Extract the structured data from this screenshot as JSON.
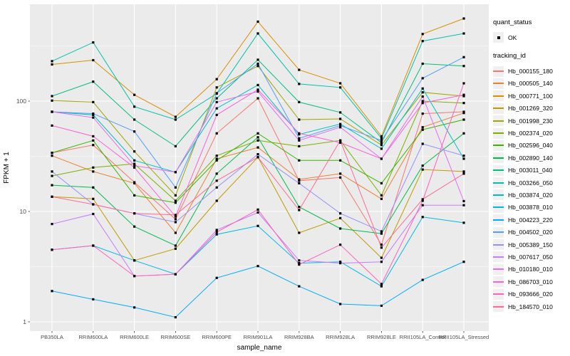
{
  "legend": {
    "quant_title": "quant_status",
    "quant_item": "OK",
    "series_title": "tracking_id"
  },
  "chart_data": {
    "type": "line",
    "title": "",
    "xlabel": "sample_name",
    "ylabel": "FPKM + 1",
    "y_scale": "log10",
    "ylim": [
      1,
      700
    ],
    "y_ticks": [
      1,
      10,
      100
    ],
    "y_minor_ticks": [
      3.162,
      31.623,
      316.228
    ],
    "grid": "on",
    "legend_position": "right",
    "point_marker": "square",
    "categories": [
      "PB350LA",
      "RRIM600LA",
      "RRIM600LE",
      "RRIM600SE",
      "RRIM600PE",
      "RRIM901LA",
      "RRIM928BA",
      "RRIM928LA",
      "RRIM928LE",
      "RRII105LA_Control",
      "RRII105LA_Stressed"
    ],
    "series": [
      {
        "name": "Hb_000155_180",
        "color": "#F8766D",
        "values": [
          34,
          40,
          18.4,
          8.5,
          51,
          106,
          19,
          20.3,
          5,
          77,
          80
        ]
      },
      {
        "name": "Hb_000505_140",
        "color": "#EA8331",
        "values": [
          32,
          23,
          18,
          6.4,
          30,
          38,
          19.5,
          22,
          13,
          58,
          78
        ]
      },
      {
        "name": "Hb_000771_100",
        "color": "#D89000",
        "values": [
          215,
          235,
          114,
          72,
          158,
          525,
          192,
          145,
          48,
          405,
          560
        ]
      },
      {
        "name": "Hb_001269_320",
        "color": "#C09B00",
        "values": [
          13.6,
          13,
          3.6,
          4.6,
          12.5,
          31,
          6.4,
          8.7,
          3.8,
          24,
          23
        ]
      },
      {
        "name": "Hb_001998_230",
        "color": "#A3A500",
        "values": [
          101,
          98,
          35,
          14,
          133,
          208,
          68,
          69,
          40,
          120,
          111
        ]
      },
      {
        "name": "Hb_002374_020",
        "color": "#7CAE00",
        "values": [
          21,
          25,
          27,
          12.5,
          32,
          44,
          39,
          44,
          14,
          100,
          96
        ]
      },
      {
        "name": "Hb_002596_040",
        "color": "#39B600",
        "values": [
          34,
          44,
          14,
          12,
          29,
          51,
          29,
          29,
          18,
          55,
          68
        ]
      },
      {
        "name": "Hb_002890_140",
        "color": "#00BB4E",
        "values": [
          17.3,
          16.5,
          7.3,
          4.9,
          22,
          47,
          11,
          7,
          6.3,
          26,
          51
        ]
      },
      {
        "name": "Hb_003011_040",
        "color": "#00BF7D",
        "values": [
          111,
          150,
          68,
          39,
          106,
          237,
          98,
          79,
          42,
          218,
          208
        ]
      },
      {
        "name": "Hb_003266_050",
        "color": "#00C1A7",
        "values": [
          230,
          340,
          89,
          68,
          117,
          410,
          143,
          133,
          46,
          350,
          410
        ]
      },
      {
        "name": "Hb_003874_020",
        "color": "#00BFC4",
        "values": [
          80,
          75,
          29,
          22.7,
          86,
          140,
          50,
          62,
          37,
          130,
          30
        ]
      },
      {
        "name": "Hb_003878_010",
        "color": "#00B8E5",
        "values": [
          4.5,
          4.9,
          3.6,
          2.7,
          6.2,
          7.4,
          3.4,
          3.5,
          2.1,
          8.9,
          7.9
        ]
      },
      {
        "name": "Hb_004223_220",
        "color": "#00ACFC",
        "values": [
          1.9,
          1.6,
          1.35,
          1.1,
          2.5,
          3.2,
          2.1,
          1.45,
          1.4,
          2.4,
          3.5
        ]
      },
      {
        "name": "Hb_004502_020",
        "color": "#529EFF",
        "values": [
          80,
          77,
          53,
          16.5,
          118,
          218,
          46,
          60,
          44,
          161,
          250
        ]
      },
      {
        "name": "Hb_005389_150",
        "color": "#9590FF",
        "values": [
          23,
          11.6,
          9.6,
          8,
          16.5,
          33,
          18,
          9.6,
          6.6,
          41,
          32
        ]
      },
      {
        "name": "Hb_007617_050",
        "color": "#C77CFF",
        "values": [
          7.7,
          9.5,
          2.6,
          2.7,
          6.8,
          9.8,
          3.6,
          3.4,
          3.5,
          11.4,
          11.4
        ]
      },
      {
        "name": "Hb_010180_010",
        "color": "#E76BF3",
        "values": [
          80,
          71,
          26,
          22.7,
          98,
          122,
          44,
          58,
          30,
          110,
          12.4
        ]
      },
      {
        "name": "Hb_086703_010",
        "color": "#FA62DB",
        "values": [
          60,
          48,
          25,
          9,
          75,
          127,
          51,
          42,
          30,
          96,
          114
        ]
      },
      {
        "name": "Hb_093666_020",
        "color": "#FF62BC",
        "values": [
          4.5,
          4.9,
          2.6,
          2.7,
          6.5,
          10.4,
          3.3,
          5,
          2.2,
          12.5,
          145
        ]
      },
      {
        "name": "Hb_184570_010",
        "color": "#FF6A98",
        "values": [
          13.6,
          11.6,
          9.6,
          9.3,
          19,
          31,
          10.3,
          44,
          4.7,
          12.9,
          22
        ]
      }
    ],
    "colors": {
      "panel_bg": "#EBEBEB",
      "grid_major": "#FFFFFF",
      "grid_minor": "#FFFFFF",
      "axis_text": "#4D4D4D",
      "axis_title": "#000000",
      "tick": "#333333",
      "point": "#000000",
      "legend_key_bg": "#F0F0F0"
    }
  }
}
